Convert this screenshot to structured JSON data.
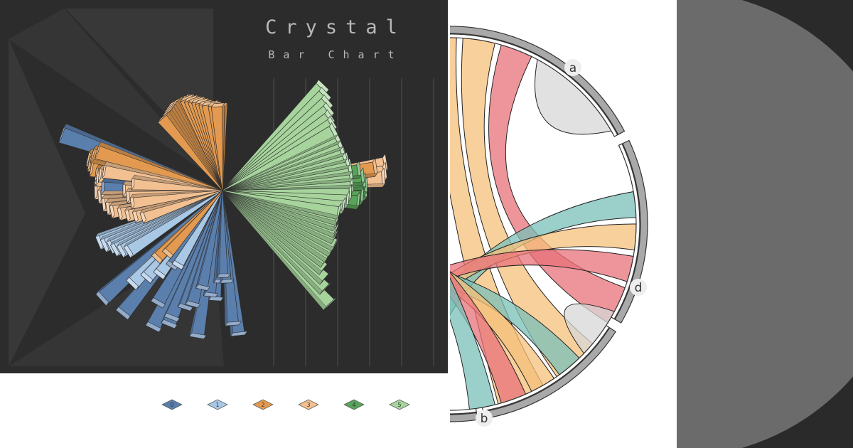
{
  "crystal": {
    "title": "Crystal",
    "subtitle": "Bar Chart"
  },
  "chart_data": [
    {
      "type": "bar",
      "title": "Crystal",
      "subtitle": "Bar Chart",
      "layout": "radial",
      "legend": [
        "0",
        "1",
        "2",
        "3",
        "4",
        "5"
      ],
      "legend_position": "bottom",
      "colors": {
        "0": "#5b7fad",
        "1": "#a9c8e6",
        "2": "#e39a50",
        "3": "#f2c091",
        "4": "#58a45a",
        "5": "#a6d49c"
      },
      "series": [
        {
          "name": "0",
          "color": "#5b7fad",
          "bars": [
            [
              222,
              230
            ],
            [
              231,
              225
            ],
            [
              240,
              185
            ],
            [
              236,
              130
            ],
            [
              243,
              218
            ],
            [
              248,
              195
            ],
            [
              252,
              175
            ],
            [
              255,
              168
            ],
            [
              258,
              142
            ],
            [
              260,
              210
            ],
            [
              263,
              150
            ],
            [
              266,
              155
            ],
            [
              268,
              130
            ],
            [
              270,
              122
            ],
            [
              272,
              130
            ],
            [
              274,
              190
            ],
            [
              276,
              205
            ],
            [
              179,
              170
            ],
            [
              161,
              240
            ],
            [
              248,
              205
            ]
          ]
        },
        {
          "name": "1",
          "color": "#a9c8e6",
          "bars": [
            [
              203,
              190
            ],
            [
              205,
              185
            ],
            [
              207,
              178
            ],
            [
              209,
              175
            ],
            [
              211,
              168
            ],
            [
              213,
              160
            ],
            [
              226,
              185
            ],
            [
              229,
              165
            ],
            [
              233,
              150
            ],
            [
              239,
              125
            ]
          ]
        },
        {
          "name": "2",
          "color": "#e39a50",
          "bars": [
            [
              92,
              118
            ],
            [
              94,
              118
            ],
            [
              96,
              120
            ],
            [
              98,
              122
            ],
            [
              100,
              122
            ],
            [
              102,
              124
            ],
            [
              104,
              127
            ],
            [
              106,
              130
            ],
            [
              108,
              132
            ],
            [
              110,
              135
            ],
            [
              112,
              138
            ],
            [
              114,
              140
            ],
            [
              116,
              140
            ],
            [
              118,
              140
            ],
            [
              120,
              140
            ],
            [
              122,
              138
            ],
            [
              124,
              136
            ],
            [
              126,
              134
            ],
            [
              128,
              132
            ],
            [
              130,
              132
            ],
            [
              163,
              185
            ],
            [
              165,
              190
            ],
            [
              167,
              195
            ],
            [
              169,
              192
            ],
            [
              171,
              188
            ],
            [
              173,
              180
            ],
            [
              226,
              135
            ],
            [
              229,
              120
            ],
            [
              8,
              215
            ]
          ]
        },
        {
          "name": "3",
          "color": "#f2c091",
          "bars": [
            [
              171,
              170
            ],
            [
              173,
              175
            ],
            [
              175,
              178
            ],
            [
              177,
              180
            ],
            [
              179,
              180
            ],
            [
              181,
              180
            ],
            [
              183,
              175
            ],
            [
              185,
              170
            ],
            [
              187,
              170
            ],
            [
              189,
              165
            ],
            [
              191,
              160
            ],
            [
              193,
              150
            ],
            [
              195,
              140
            ],
            [
              197,
              130
            ],
            [
              199,
              120
            ],
            [
              176,
              128
            ],
            [
              180,
              140
            ],
            [
              184,
              135
            ],
            [
              188,
              130
            ],
            [
              4,
              225
            ],
            [
              6,
              228
            ],
            [
              9,
              230
            ]
          ]
        },
        {
          "name": "4",
          "color": "#58a45a",
          "bars": [
            [
              355,
              190
            ],
            [
              357,
              195
            ],
            [
              359,
              200
            ],
            [
              1,
              200
            ],
            [
              3,
              198
            ],
            [
              5,
              196
            ],
            [
              8,
              192
            ]
          ]
        },
        {
          "name": "5",
          "color": "#a6d49c",
          "bars": [
            [
              313,
              220
            ],
            [
              316,
              200
            ],
            [
              319,
              190
            ],
            [
              322,
              180
            ],
            [
              325,
              175
            ],
            [
              328,
              175
            ],
            [
              331,
              175
            ],
            [
              334,
              175
            ],
            [
              337,
              170
            ],
            [
              340,
              168
            ],
            [
              343,
              165
            ],
            [
              346,
              165
            ],
            [
              349,
              165
            ],
            [
              352,
              170
            ],
            [
              355,
              175
            ],
            [
              358,
              178
            ],
            [
              1,
              180
            ],
            [
              4,
              180
            ],
            [
              7,
              180
            ],
            [
              10,
              180
            ],
            [
              13,
              178
            ],
            [
              16,
              176
            ],
            [
              19,
              175
            ],
            [
              22,
              175
            ],
            [
              25,
              175
            ],
            [
              28,
              175
            ],
            [
              31,
              178
            ],
            [
              34,
              180
            ],
            [
              37,
              185
            ],
            [
              40,
              190
            ],
            [
              43,
              195
            ],
            [
              46,
              200
            ]
          ]
        }
      ]
    },
    {
      "type": "chord",
      "groups": [
        {
          "name": "a",
          "color": "#e8727a"
        },
        {
          "name": "b",
          "color": "#e8727a"
        },
        {
          "name": "d",
          "color": "#79c0b8"
        }
      ],
      "ribbon_colors": [
        "#e8727a",
        "#f6c07a",
        "#79c0b8",
        "#d7d7d7"
      ]
    }
  ],
  "chord": {
    "labels": {
      "a": "a",
      "b": "b",
      "d": "d"
    }
  }
}
